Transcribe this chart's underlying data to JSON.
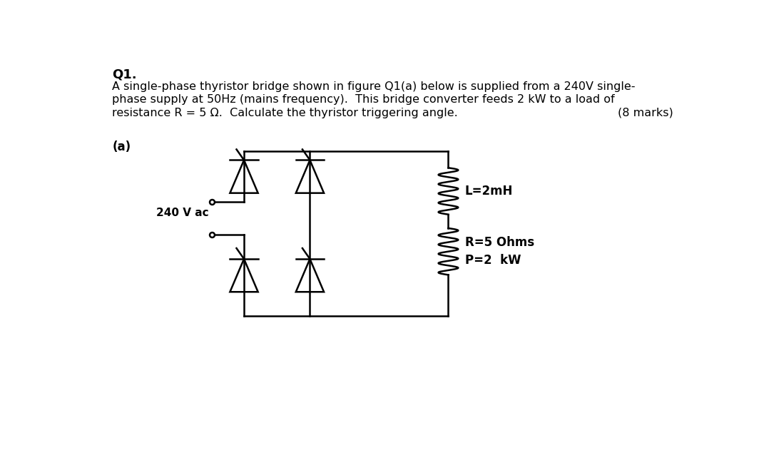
{
  "title": "Q1.",
  "line1": "A single-phase thyristor bridge shown in figure Q1(a) below is supplied from a 240V single-",
  "line2": "phase supply at 50Hz (mains frequency).  This bridge converter feeds 2 kW to a load of",
  "line3": "resistance R = 5 Ω.  Calculate the thyristor triggering angle.",
  "marks_text": "(8 marks)",
  "label_a": "(a)",
  "label_240v": "240 V ac",
  "label_L": "L=2mH",
  "label_R": "R=5 Ohms",
  "label_P": "P=2  kW",
  "bg_color": "#ffffff",
  "line_color": "#000000",
  "fig_width": 10.64,
  "fig_height": 6.45,
  "dpi": 100
}
